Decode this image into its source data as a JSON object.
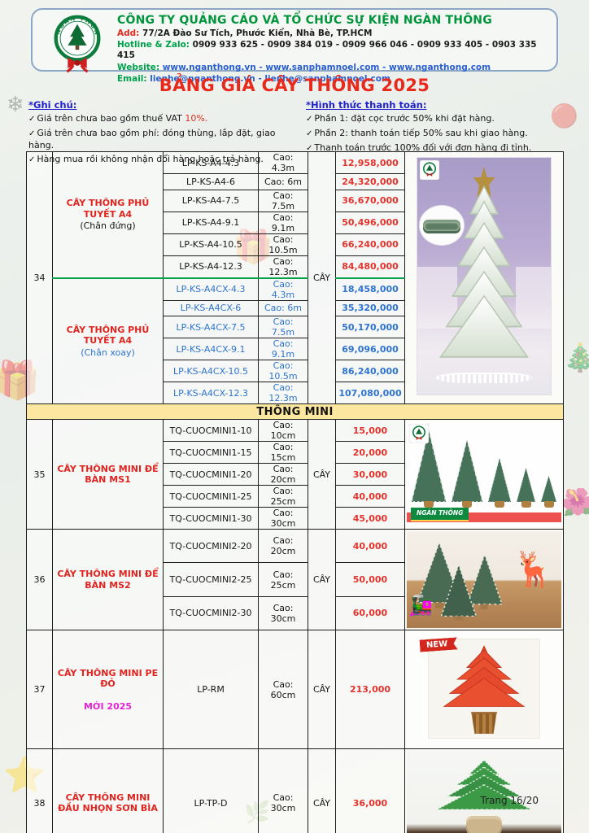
{
  "header": {
    "logo_text": "NGÀN THÔNG",
    "company_name": "CÔNG TY QUẢNG CÁO VÀ TỔ CHỨC SỰ KIỆN NGÀN THÔNG",
    "address_label": "Add:",
    "address": "77/2A Đào Sư Tích, Phước Kiển, Nhà Bè, TP.HCM",
    "hotline_label": "Hotline & Zalo:",
    "hotline": "0909 933 625 - 0909 384 019 - 0909 966 046 - 0909 933 405 - 0903 335 415",
    "website_label": "Website:",
    "website": "www.nganthong.vn - www.sanphamnoel.com - www.nganthong.com",
    "email_label": "Email:",
    "email": "lienhe@nganthong.vn - lienhe@sanphamnoel.com"
  },
  "title": "BẢNG GIÁ CÂY THÔNG 2025",
  "check_glyph": "✓",
  "notes_left": {
    "heading": "*Ghi chú:",
    "items": [
      {
        "text": "Giá trên chưa bao gồm thuế VAT ",
        "em": "10%."
      },
      {
        "text": "Giá trên chưa bao gồm phí: đóng thùng, lắp đặt, giao hàng.",
        "em": ""
      },
      {
        "text": "Hàng mua rồi không nhận đổi hàng hoặc trả hàng.",
        "em": ""
      }
    ]
  },
  "notes_right": {
    "heading": "*Hình thức thanh toán:",
    "items": [
      {
        "text": "Phần 1: đặt cọc trước 50% khi đặt hàng.",
        "em": ""
      },
      {
        "text": "Phần 2: thanh toán tiếp 50% sau khi giao hàng.",
        "em": ""
      },
      {
        "text": "Thanh toán trước 100% đối với đơn hàng đi tỉnh.",
        "em": ""
      }
    ]
  },
  "table": {
    "groups": [
      {
        "stt": "34",
        "unit": "CÂY",
        "image": "tpl-tree34",
        "subgroups": [
          {
            "name": "CÂY THÔNG PHỦ TUYẾT A4",
            "note": "(Chân đứng)",
            "ink": "black",
            "items": [
              {
                "code": "LP-KS-A4-4.3",
                "size": "Cao: 4.3m",
                "price": "12,958,000"
              },
              {
                "code": "LP-KS-A4-6",
                "size": "Cao: 6m",
                "price": "24,320,000"
              },
              {
                "code": "LP-KS-A4-7.5",
                "size": "Cao: 7.5m",
                "price": "36,670,000"
              },
              {
                "code": "LP-KS-A4-9.1",
                "size": "Cao: 9.1m",
                "price": "50,496,000"
              },
              {
                "code": "LP-KS-A4-10.5",
                "size": "Cao: 10.5m",
                "price": "66,240,000"
              },
              {
                "code": "LP-KS-A4-12.3",
                "size": "Cao: 12.3m",
                "price": "84,480,000"
              }
            ]
          },
          {
            "name": "CÂY THÔNG PHỦ TUYẾT A4",
            "note": "(Chân xoay)",
            "ink": "blue",
            "items": [
              {
                "code": "LP-KS-A4CX-4.3",
                "size": "Cao: 4.3m",
                "price": "18,458,000"
              },
              {
                "code": "LP-KS-A4CX-6",
                "size": "Cao: 6m",
                "price": "35,320,000"
              },
              {
                "code": "LP-KS-A4CX-7.5",
                "size": "Cao: 7.5m",
                "price": "50,170,000"
              },
              {
                "code": "LP-KS-A4CX-9.1",
                "size": "Cao: 9.1m",
                "price": "69,096,000"
              },
              {
                "code": "LP-KS-A4CX-10.5",
                "size": "Cao: 10.5m",
                "price": "86,240,000"
              },
              {
                "code": "LP-KS-A4CX-12.3",
                "size": "Cao: 12.3m",
                "price": "107,080,000"
              }
            ]
          }
        ]
      },
      {
        "section_before": "THÔNG MINI",
        "stt": "35",
        "unit": "CÂY",
        "image": "tpl-tree35",
        "subgroups": [
          {
            "name": "CÂY THÔNG MINI ĐỂ BÀN MS1",
            "note": "",
            "ink": "black",
            "items": [
              {
                "code": "TQ-CUOCMINI1-10",
                "size": "Cao: 10cm",
                "price": "15,000"
              },
              {
                "code": "TQ-CUOCMINI1-15",
                "size": "Cao: 15cm",
                "price": "20,000"
              },
              {
                "code": "TQ-CUOCMINI1-20",
                "size": "Cao: 20cm",
                "price": "30,000"
              },
              {
                "code": "TQ-CUOCMINI1-25",
                "size": "Cao: 25cm",
                "price": "40,000"
              },
              {
                "code": "TQ-CUOCMINI1-30",
                "size": "Cao: 30cm",
                "price": "45,000"
              }
            ]
          }
        ]
      },
      {
        "stt": "36",
        "unit": "CÂY",
        "image": "tpl-tree36",
        "subgroups": [
          {
            "name": "CÂY THÔNG MINI ĐỂ BÀN MS2",
            "note": "",
            "ink": "black",
            "items": [
              {
                "code": "TQ-CUOCMINI2-20",
                "size": "Cao: 20cm",
                "price": "40,000"
              },
              {
                "code": "TQ-CUOCMINI2-25",
                "size": "Cao: 25cm",
                "price": "50,000"
              },
              {
                "code": "TQ-CUOCMINI2-30",
                "size": "Cao: 30cm",
                "price": "60,000"
              }
            ]
          }
        ]
      },
      {
        "stt": "37",
        "unit": "CÂY",
        "image": "tpl-tree37",
        "subgroups": [
          {
            "name": "CÂY THÔNG MINI PE ĐỎ",
            "note": "",
            "note2": "MỚI 2025",
            "ink": "black",
            "items": [
              {
                "code": "LP-RM",
                "size": "Cao: 60cm",
                "price": "213,000"
              }
            ]
          }
        ]
      },
      {
        "stt": "38",
        "unit": "CÂY",
        "image": "tpl-tree38",
        "subgroups": [
          {
            "name": "CÂY THÔNG MINI ĐẦU NHỌN SƠN BÌA",
            "note": "",
            "ink": "black",
            "items": [
              {
                "code": "LP-TP-D",
                "size": "Cao: 30cm",
                "price": "36,000"
              }
            ]
          }
        ]
      }
    ]
  },
  "images": {
    "new_badge": "NEW",
    "brand_banner": "NGÀN THÔNG"
  },
  "footer": {
    "page": "Trang 16/20"
  },
  "colors": {
    "accent_red": "#e02b20",
    "accent_blue": "#2e74cf",
    "brand_green": "#00953b",
    "band_yellow": "#fbe7a0",
    "new_magenta": "#e322d6",
    "split_green": "#00a34a"
  },
  "decorations": {
    "gift": "🎁",
    "star": "⭐",
    "flower": "🌺",
    "snow": "❄",
    "tree": "🎄",
    "ball": "🔴",
    "branch": "🌿"
  }
}
